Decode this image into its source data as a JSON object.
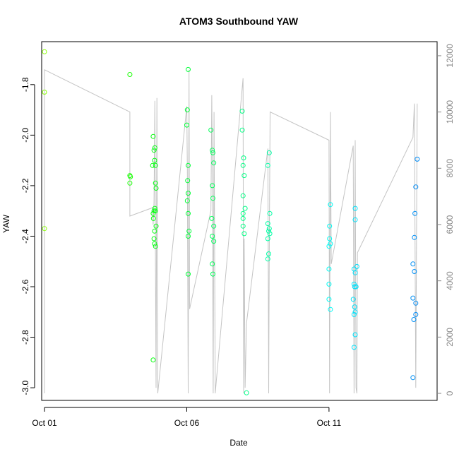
{
  "chart_data": {
    "type": "scatter",
    "title": "ATOM3 Southbound YAW",
    "xlabel": "Date",
    "ylabel": "YAW",
    "x_unit": "day of October",
    "xlim": [
      0.9,
      14.8
    ],
    "ylim": [
      -3.05,
      -1.63
    ],
    "x_ticks": [
      {
        "value": 1,
        "label": "Oct 01"
      },
      {
        "value": 6,
        "label": "Oct 06"
      },
      {
        "value": 11,
        "label": "Oct 11"
      }
    ],
    "y_ticks": [
      -3.0,
      -2.8,
      -2.6,
      -2.4,
      -2.2,
      -2.0,
      -1.8
    ],
    "y2_ticks": [
      0,
      2000,
      4000,
      6000,
      8000,
      10000,
      12000
    ],
    "y2lim": [
      -250,
      12500
    ],
    "grid": false,
    "points": [
      [
        1.0,
        -1.67
      ],
      [
        1.0,
        -1.83
      ],
      [
        1.0,
        -2.37
      ],
      [
        4.0,
        -1.76
      ],
      [
        4.0,
        -2.16
      ],
      [
        4.02,
        -2.165
      ],
      [
        4.0,
        -2.19
      ],
      [
        4.8,
        -2.12
      ],
      [
        4.82,
        -2.005
      ],
      [
        4.85,
        -2.06
      ],
      [
        4.88,
        -2.05
      ],
      [
        4.87,
        -2.1
      ],
      [
        4.9,
        -2.12
      ],
      [
        4.92,
        -2.21
      ],
      [
        4.9,
        -2.19
      ],
      [
        4.82,
        -2.31
      ],
      [
        4.85,
        -2.3
      ],
      [
        4.88,
        -2.29
      ],
      [
        4.9,
        -2.3
      ],
      [
        4.92,
        -2.36
      ],
      [
        4.87,
        -2.38
      ],
      [
        4.83,
        -2.33
      ],
      [
        4.85,
        -2.41
      ],
      [
        4.87,
        -2.43
      ],
      [
        4.9,
        -2.44
      ],
      [
        4.82,
        -2.89
      ],
      [
        6.05,
        -1.74
      ],
      [
        6.02,
        -1.9
      ],
      [
        6.0,
        -1.96
      ],
      [
        6.05,
        -2.12
      ],
      [
        6.03,
        -2.18
      ],
      [
        6.05,
        -2.23
      ],
      [
        6.02,
        -2.26
      ],
      [
        6.05,
        -2.31
      ],
      [
        6.08,
        -2.38
      ],
      [
        6.05,
        -2.4
      ],
      [
        6.05,
        -2.55
      ],
      [
        6.85,
        -1.98
      ],
      [
        6.9,
        -2.06
      ],
      [
        6.92,
        -2.07
      ],
      [
        6.95,
        -2.11
      ],
      [
        6.9,
        -2.2
      ],
      [
        6.92,
        -2.25
      ],
      [
        6.88,
        -2.33
      ],
      [
        6.95,
        -2.36
      ],
      [
        6.9,
        -2.4
      ],
      [
        6.95,
        -2.42
      ],
      [
        6.9,
        -2.51
      ],
      [
        6.92,
        -2.55
      ],
      [
        7.95,
        -1.905
      ],
      [
        7.95,
        -1.98
      ],
      [
        8.0,
        -2.09
      ],
      [
        7.98,
        -2.12
      ],
      [
        8.02,
        -2.16
      ],
      [
        7.98,
        -2.24
      ],
      [
        8.05,
        -2.29
      ],
      [
        7.98,
        -2.31
      ],
      [
        7.98,
        -2.33
      ],
      [
        7.98,
        -2.36
      ],
      [
        8.02,
        -2.39
      ],
      [
        8.1,
        -3.02
      ],
      [
        8.9,
        -2.07
      ],
      [
        8.85,
        -2.12
      ],
      [
        8.92,
        -2.31
      ],
      [
        8.85,
        -2.35
      ],
      [
        8.9,
        -2.37
      ],
      [
        8.88,
        -2.38
      ],
      [
        8.92,
        -2.39
      ],
      [
        8.85,
        -2.41
      ],
      [
        8.88,
        -2.47
      ],
      [
        8.85,
        -2.49
      ],
      [
        11.05,
        -2.275
      ],
      [
        11.02,
        -2.36
      ],
      [
        11.02,
        -2.41
      ],
      [
        11.05,
        -2.43
      ],
      [
        11.0,
        -2.44
      ],
      [
        11.0,
        -2.53
      ],
      [
        11.0,
        -2.59
      ],
      [
        11.0,
        -2.65
      ],
      [
        11.05,
        -2.69
      ],
      [
        11.92,
        -2.29
      ],
      [
        11.92,
        -2.335
      ],
      [
        11.98,
        -2.52
      ],
      [
        11.88,
        -2.53
      ],
      [
        11.92,
        -2.545
      ],
      [
        11.88,
        -2.59
      ],
      [
        11.9,
        -2.6
      ],
      [
        11.95,
        -2.6
      ],
      [
        11.85,
        -2.65
      ],
      [
        11.9,
        -2.68
      ],
      [
        11.92,
        -2.7
      ],
      [
        11.88,
        -2.71
      ],
      [
        11.92,
        -2.79
      ],
      [
        11.88,
        -2.84
      ],
      [
        14.1,
        -2.095
      ],
      [
        14.05,
        -2.205
      ],
      [
        14.02,
        -2.31
      ],
      [
        14.0,
        -2.405
      ],
      [
        13.95,
        -2.51
      ],
      [
        14.0,
        -2.54
      ],
      [
        13.95,
        -2.645
      ],
      [
        14.05,
        -2.665
      ],
      [
        14.05,
        -2.71
      ],
      [
        13.98,
        -2.73
      ],
      [
        13.95,
        -2.96
      ]
    ],
    "count_line_series": [
      [
        1.0,
        0
      ],
      [
        1.0,
        11500
      ],
      [
        4.0,
        10000
      ],
      [
        4.0,
        6300
      ],
      [
        4.8,
        6600
      ],
      [
        4.82,
        6000
      ],
      [
        4.85,
        6800
      ],
      [
        4.88,
        10400
      ],
      [
        4.9,
        4500
      ],
      [
        4.92,
        200
      ],
      [
        4.95,
        10500
      ],
      [
        4.98,
        0
      ],
      [
        6.0,
        10200
      ],
      [
        6.02,
        8000
      ],
      [
        6.05,
        0
      ],
      [
        6.08,
        11500
      ],
      [
        6.1,
        3000
      ],
      [
        6.85,
        6500
      ],
      [
        6.88,
        10600
      ],
      [
        6.9,
        8000
      ],
      [
        6.93,
        0
      ],
      [
        6.96,
        10000
      ],
      [
        7.0,
        0
      ],
      [
        7.98,
        11200
      ],
      [
        8.0,
        0
      ],
      [
        8.02,
        5500
      ],
      [
        8.05,
        200
      ],
      [
        8.1,
        2500
      ],
      [
        8.85,
        8700
      ],
      [
        8.88,
        0
      ],
      [
        8.9,
        5000
      ],
      [
        8.93,
        10000
      ],
      [
        11.0,
        9000
      ],
      [
        11.02,
        0
      ],
      [
        11.05,
        10000
      ],
      [
        11.08,
        4600
      ],
      [
        11.85,
        8800
      ],
      [
        11.88,
        0
      ],
      [
        11.92,
        9000
      ],
      [
        11.95,
        200
      ],
      [
        11.98,
        0
      ],
      [
        12.0,
        5000
      ],
      [
        13.95,
        9100
      ],
      [
        14.0,
        10300
      ],
      [
        14.05,
        200
      ],
      [
        14.1,
        10300
      ]
    ]
  }
}
